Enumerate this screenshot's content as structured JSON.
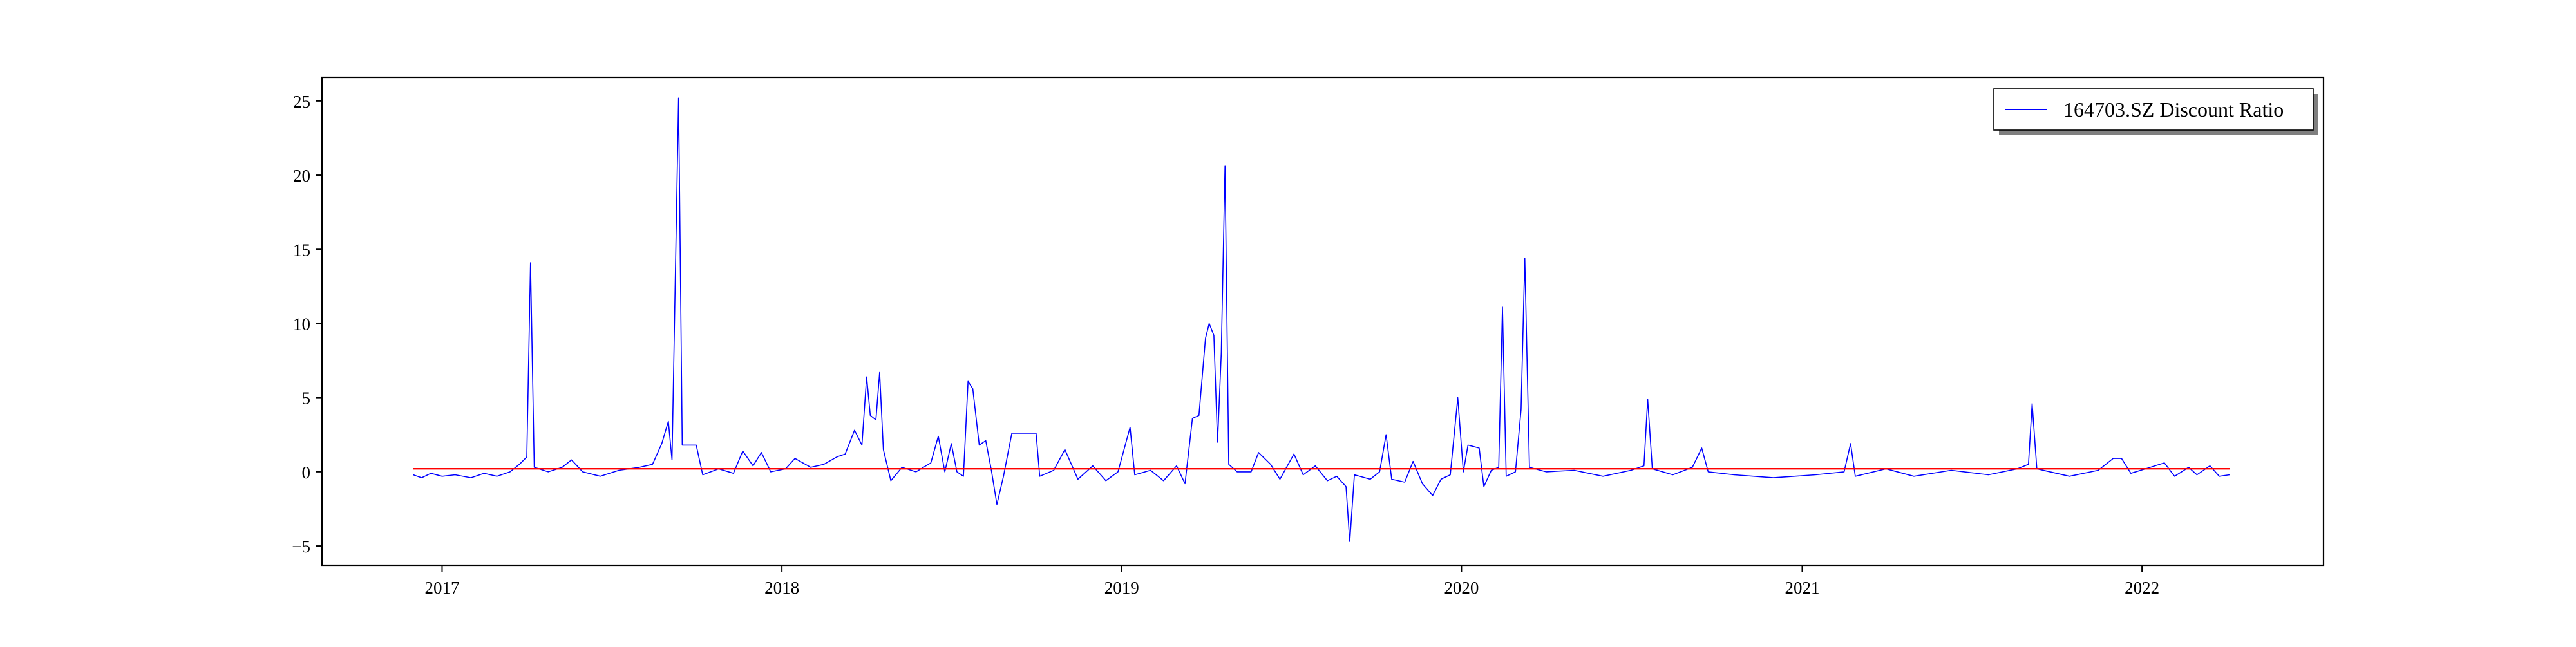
{
  "chart_data": {
    "type": "line",
    "title": "",
    "xlabel": "",
    "ylabel": "",
    "xlim": [
      "2016-08-25",
      "2022-07-15"
    ],
    "ylim": [
      -6.3,
      26.6
    ],
    "x_ticks": [
      "2017",
      "2018",
      "2019",
      "2020",
      "2021",
      "2022"
    ],
    "y_ticks": [
      -5,
      0,
      5,
      10,
      15,
      20,
      25
    ],
    "grid": false,
    "legend": "top-right",
    "series": [
      {
        "name": "164703.SZ Discount Ratio",
        "color": "#0000ff",
        "points": [
          [
            "2016-12-01",
            -0.2
          ],
          [
            "2016-12-10",
            -0.4
          ],
          [
            "2016-12-20",
            -0.1
          ],
          [
            "2017-01-01",
            -0.3
          ],
          [
            "2017-01-15",
            -0.2
          ],
          [
            "2017-02-01",
            -0.4
          ],
          [
            "2017-02-15",
            -0.1
          ],
          [
            "2017-03-01",
            -0.3
          ],
          [
            "2017-03-15",
            0.0
          ],
          [
            "2017-03-25",
            0.5
          ],
          [
            "2017-04-02",
            1.0
          ],
          [
            "2017-04-06",
            14.1
          ],
          [
            "2017-04-10",
            0.3
          ],
          [
            "2017-04-25",
            0.0
          ],
          [
            "2017-05-10",
            0.3
          ],
          [
            "2017-05-20",
            0.8
          ],
          [
            "2017-06-01",
            0.0
          ],
          [
            "2017-06-20",
            -0.3
          ],
          [
            "2017-07-10",
            0.1
          ],
          [
            "2017-08-01",
            0.3
          ],
          [
            "2017-08-15",
            0.5
          ],
          [
            "2017-08-25",
            1.9
          ],
          [
            "2017-09-01",
            3.4
          ],
          [
            "2017-09-05",
            0.8
          ],
          [
            "2017-09-12",
            25.2
          ],
          [
            "2017-09-16",
            1.8
          ],
          [
            "2017-10-01",
            1.8
          ],
          [
            "2017-10-08",
            -0.2
          ],
          [
            "2017-10-25",
            0.2
          ],
          [
            "2017-11-10",
            -0.1
          ],
          [
            "2017-11-20",
            1.4
          ],
          [
            "2017-12-01",
            0.4
          ],
          [
            "2017-12-10",
            1.3
          ],
          [
            "2017-12-20",
            0.0
          ],
          [
            "2018-01-05",
            0.2
          ],
          [
            "2018-01-15",
            0.9
          ],
          [
            "2018-02-01",
            0.3
          ],
          [
            "2018-02-15",
            0.5
          ],
          [
            "2018-03-01",
            1.0
          ],
          [
            "2018-03-10",
            1.2
          ],
          [
            "2018-03-20",
            2.8
          ],
          [
            "2018-03-28",
            1.8
          ],
          [
            "2018-04-02",
            6.4
          ],
          [
            "2018-04-06",
            3.8
          ],
          [
            "2018-04-12",
            3.5
          ],
          [
            "2018-04-16",
            6.7
          ],
          [
            "2018-04-20",
            1.5
          ],
          [
            "2018-04-28",
            -0.6
          ],
          [
            "2018-05-10",
            0.3
          ],
          [
            "2018-05-25",
            0.0
          ],
          [
            "2018-06-10",
            0.6
          ],
          [
            "2018-06-18",
            2.4
          ],
          [
            "2018-06-25",
            0.0
          ],
          [
            "2018-07-02",
            1.9
          ],
          [
            "2018-07-08",
            0.0
          ],
          [
            "2018-07-15",
            -0.3
          ],
          [
            "2018-07-20",
            6.1
          ],
          [
            "2018-07-25",
            5.6
          ],
          [
            "2018-08-01",
            1.8
          ],
          [
            "2018-08-08",
            2.1
          ],
          [
            "2018-08-14",
            0.1
          ],
          [
            "2018-08-20",
            -2.2
          ],
          [
            "2018-08-27",
            -0.3
          ],
          [
            "2018-09-05",
            2.6
          ],
          [
            "2018-09-20",
            2.6
          ],
          [
            "2018-10-01",
            2.6
          ],
          [
            "2018-10-05",
            -0.3
          ],
          [
            "2018-10-20",
            0.1
          ],
          [
            "2018-11-01",
            1.5
          ],
          [
            "2018-11-15",
            -0.5
          ],
          [
            "2018-12-01",
            0.4
          ],
          [
            "2018-12-15",
            -0.6
          ],
          [
            "2018-12-28",
            0.0
          ],
          [
            "2019-01-10",
            3.0
          ],
          [
            "2019-01-15",
            -0.2
          ],
          [
            "2019-02-01",
            0.1
          ],
          [
            "2019-02-15",
            -0.6
          ],
          [
            "2019-03-01",
            0.4
          ],
          [
            "2019-03-10",
            -0.8
          ],
          [
            "2019-03-18",
            3.6
          ],
          [
            "2019-03-25",
            3.8
          ],
          [
            "2019-04-01",
            9.0
          ],
          [
            "2019-04-05",
            10.0
          ],
          [
            "2019-04-10",
            9.2
          ],
          [
            "2019-04-14",
            2.0
          ],
          [
            "2019-04-18",
            8.0
          ],
          [
            "2019-04-22",
            20.6
          ],
          [
            "2019-04-26",
            0.5
          ],
          [
            "2019-05-05",
            0.0
          ],
          [
            "2019-05-20",
            0.0
          ],
          [
            "2019-05-28",
            1.3
          ],
          [
            "2019-06-10",
            0.5
          ],
          [
            "2019-06-20",
            -0.5
          ],
          [
            "2019-07-05",
            1.2
          ],
          [
            "2019-07-15",
            -0.2
          ],
          [
            "2019-07-28",
            0.4
          ],
          [
            "2019-08-10",
            -0.6
          ],
          [
            "2019-08-20",
            -0.3
          ],
          [
            "2019-08-30",
            -1.0
          ],
          [
            "2019-09-03",
            -4.7
          ],
          [
            "2019-09-08",
            -0.2
          ],
          [
            "2019-09-25",
            -0.5
          ],
          [
            "2019-10-05",
            0.0
          ],
          [
            "2019-10-12",
            2.5
          ],
          [
            "2019-10-18",
            -0.5
          ],
          [
            "2019-11-01",
            -0.7
          ],
          [
            "2019-11-10",
            0.7
          ],
          [
            "2019-11-20",
            -0.8
          ],
          [
            "2019-12-01",
            -1.6
          ],
          [
            "2019-12-10",
            -0.5
          ],
          [
            "2019-12-20",
            -0.2
          ],
          [
            "2019-12-28",
            5.0
          ],
          [
            "2020-01-03",
            0.0
          ],
          [
            "2020-01-08",
            1.8
          ],
          [
            "2020-01-20",
            1.6
          ],
          [
            "2020-01-25",
            -1.0
          ],
          [
            "2020-02-02",
            0.1
          ],
          [
            "2020-02-10",
            0.3
          ],
          [
            "2020-02-14",
            11.1
          ],
          [
            "2020-02-18",
            -0.3
          ],
          [
            "2020-02-28",
            0.0
          ],
          [
            "2020-03-05",
            4.2
          ],
          [
            "2020-03-09",
            14.4
          ],
          [
            "2020-03-14",
            0.3
          ],
          [
            "2020-04-01",
            0.0
          ],
          [
            "2020-05-01",
            0.1
          ],
          [
            "2020-06-01",
            -0.3
          ],
          [
            "2020-07-01",
            0.1
          ],
          [
            "2020-07-15",
            0.4
          ],
          [
            "2020-07-19",
            4.9
          ],
          [
            "2020-07-24",
            0.2
          ],
          [
            "2020-08-15",
            -0.2
          ],
          [
            "2020-09-05",
            0.3
          ],
          [
            "2020-09-15",
            1.6
          ],
          [
            "2020-09-22",
            0.0
          ],
          [
            "2020-10-20",
            -0.2
          ],
          [
            "2020-12-01",
            -0.4
          ],
          [
            "2021-01-15",
            -0.2
          ],
          [
            "2021-02-15",
            0.0
          ],
          [
            "2021-02-22",
            1.9
          ],
          [
            "2021-02-27",
            -0.3
          ],
          [
            "2021-04-01",
            0.2
          ],
          [
            "2021-05-01",
            -0.3
          ],
          [
            "2021-06-10",
            0.1
          ],
          [
            "2021-07-20",
            -0.2
          ],
          [
            "2021-08-20",
            0.2
          ],
          [
            "2021-09-01",
            0.5
          ],
          [
            "2021-09-05",
            4.6
          ],
          [
            "2021-09-10",
            0.2
          ],
          [
            "2021-10-15",
            -0.3
          ],
          [
            "2021-11-15",
            0.1
          ],
          [
            "2021-12-01",
            0.9
          ],
          [
            "2021-12-10",
            0.9
          ],
          [
            "2021-12-20",
            -0.1
          ],
          [
            "2022-01-10",
            0.3
          ],
          [
            "2022-01-25",
            0.6
          ],
          [
            "2022-02-05",
            -0.3
          ],
          [
            "2022-02-20",
            0.3
          ],
          [
            "2022-03-01",
            -0.2
          ],
          [
            "2022-03-15",
            0.4
          ],
          [
            "2022-03-25",
            -0.3
          ],
          [
            "2022-04-05",
            -0.2
          ]
        ]
      },
      {
        "name": "",
        "color": "#ff0000",
        "points": [
          [
            "2016-12-01",
            0.2
          ],
          [
            "2022-04-05",
            0.2
          ]
        ]
      }
    ]
  }
}
